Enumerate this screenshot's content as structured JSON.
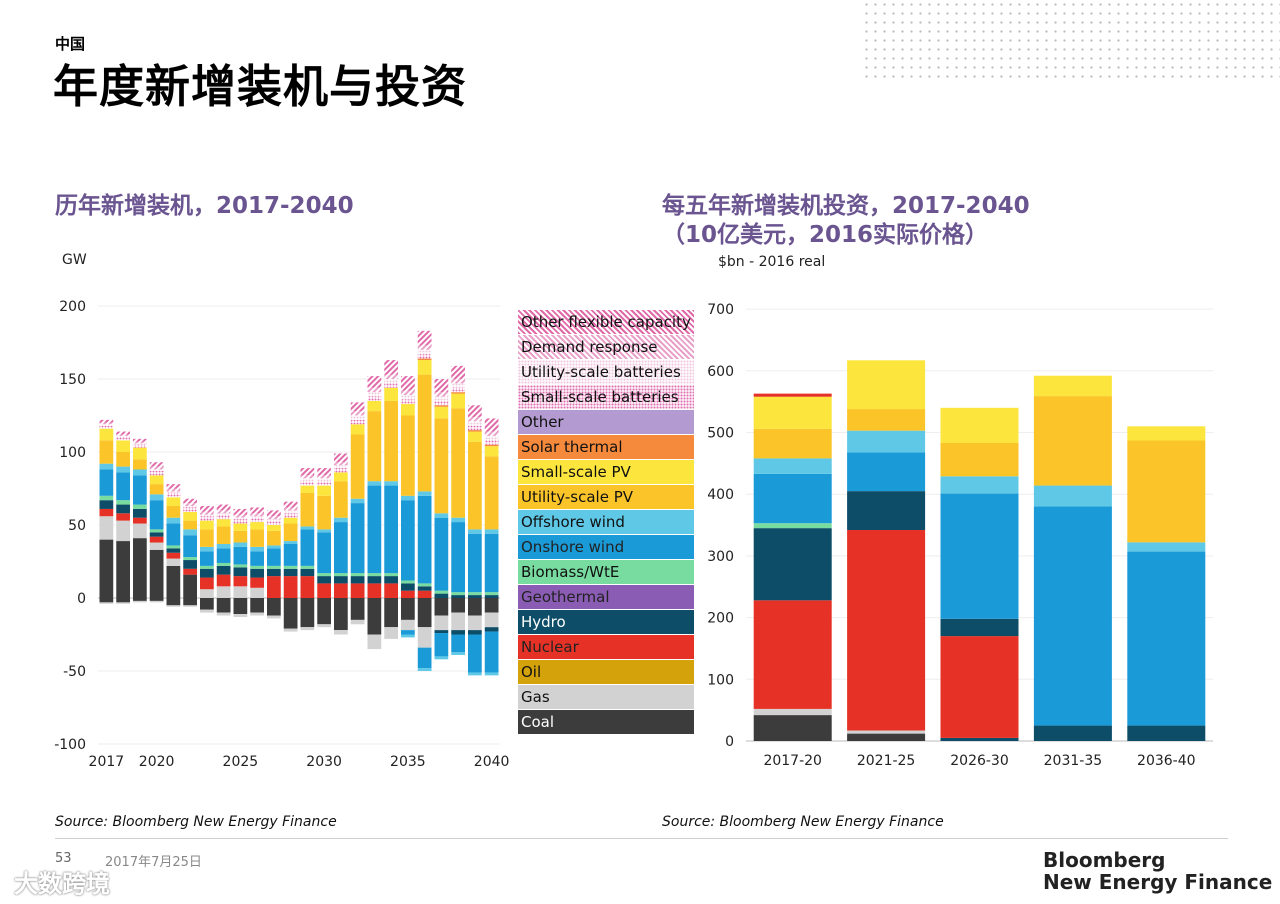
{
  "header": {
    "kicker": "中国",
    "title": "年度新增装机与投资"
  },
  "left_panel": {
    "subtitle": "历年新增装机，2017-2040",
    "unit": "GW",
    "source": "Source: Bloomberg New Energy Finance"
  },
  "right_panel": {
    "subtitle_line1": "每五年新增装机投资，2017-2040",
    "subtitle_line2": "（10亿美元，2016实际价格）",
    "unit": "$bn - 2016 real",
    "source": "Source: Bloomberg New Energy Finance"
  },
  "footer": {
    "page": "53",
    "date": "2017年7月25日",
    "brand_line1": "Bloomberg",
    "brand_line2": "New Energy Finance",
    "watermark": "大数跨境"
  },
  "legend": [
    {
      "label": "Other flexible capacity",
      "color": "#e06aa8",
      "pattern": "hatch"
    },
    {
      "label": "Demand response",
      "color": "#e8a0c8",
      "pattern": "hatch"
    },
    {
      "label": "Utility-scale batteries",
      "color": "#f0c8dc",
      "pattern": "dots"
    },
    {
      "label": "Small-scale batteries",
      "color": "#e070b0",
      "pattern": "dots"
    },
    {
      "label": "Other",
      "color": "#b39ad0",
      "pattern": "solid"
    },
    {
      "label": "Solar thermal",
      "color": "#f58a3c",
      "pattern": "solid"
    },
    {
      "label": "Small-scale PV",
      "color": "#fce53c",
      "pattern": "solid"
    },
    {
      "label": "Utility-scale PV",
      "color": "#fbc52a",
      "pattern": "solid"
    },
    {
      "label": "Offshore wind",
      "color": "#5ec8e6",
      "pattern": "solid"
    },
    {
      "label": "Onshore wind",
      "color": "#1b9ad8",
      "pattern": "solid"
    },
    {
      "label": "Biomass/WtE",
      "color": "#78dca0",
      "pattern": "solid"
    },
    {
      "label": "Geothermal",
      "color": "#8a5cb4",
      "pattern": "solid"
    },
    {
      "label": "Hydro",
      "color": "#0d4d68",
      "pattern": "solid"
    },
    {
      "label": "Nuclear",
      "color": "#e63226",
      "pattern": "solid"
    },
    {
      "label": "Oil",
      "color": "#d4a20a",
      "pattern": "solid"
    },
    {
      "label": "Gas",
      "color": "#d2d2d2",
      "pattern": "solid"
    },
    {
      "label": "Coal",
      "color": "#3c3c3c",
      "pattern": "solid"
    }
  ],
  "chart_data": [
    {
      "type": "bar",
      "stacked": true,
      "ylabel": "GW",
      "ylim": [
        -100,
        200
      ],
      "yticks": [
        200,
        150,
        100,
        50,
        0,
        -50,
        -100
      ],
      "x": [
        2017,
        2018,
        2019,
        2020,
        2021,
        2022,
        2023,
        2024,
        2025,
        2026,
        2027,
        2028,
        2029,
        2030,
        2031,
        2032,
        2033,
        2034,
        2035,
        2036,
        2037,
        2038,
        2039,
        2040
      ],
      "xtick_labels": [
        "2017",
        "2020",
        "2025",
        "2030",
        "2035",
        "2040"
      ],
      "series_order": [
        "Coal",
        "Gas",
        "Oil",
        "Nuclear",
        "Hydro",
        "Geothermal",
        "Biomass/WtE",
        "Onshore wind",
        "Offshore wind",
        "Utility-scale PV",
        "Small-scale PV",
        "Solar thermal",
        "Other",
        "Small-scale batteries",
        "Utility-scale batteries",
        "Demand response",
        "Other flexible capacity"
      ],
      "series": [
        {
          "name": "Coal",
          "values": [
            40,
            39,
            41,
            33,
            22,
            16,
            0,
            0,
            0,
            0,
            0,
            0,
            0,
            0,
            0,
            0,
            0,
            0,
            0,
            0,
            0,
            0,
            0,
            0
          ]
        },
        {
          "name": "Gas",
          "values": [
            16,
            14,
            10,
            5,
            5,
            0,
            6,
            8,
            8,
            7,
            0,
            0,
            0,
            0,
            0,
            0,
            0,
            0,
            0,
            0,
            0,
            0,
            0,
            0
          ]
        },
        {
          "name": "Nuclear",
          "values": [
            5,
            5,
            4,
            4,
            4,
            4,
            8,
            8,
            7,
            7,
            15,
            15,
            15,
            10,
            10,
            10,
            10,
            10,
            5,
            5,
            0,
            0,
            0,
            0
          ]
        },
        {
          "name": "Hydro",
          "values": [
            6,
            6,
            6,
            3,
            3,
            6,
            6,
            6,
            6,
            6,
            5,
            5,
            5,
            5,
            5,
            5,
            5,
            5,
            5,
            3,
            3,
            2,
            2,
            2
          ]
        },
        {
          "name": "Biomass/WtE",
          "values": [
            3,
            3,
            3,
            2,
            2,
            2,
            2,
            2,
            2,
            2,
            2,
            2,
            2,
            2,
            2,
            2,
            2,
            2,
            2,
            2,
            2,
            2,
            2,
            2
          ]
        },
        {
          "name": "Onshore wind",
          "values": [
            18,
            19,
            20,
            20,
            15,
            15,
            10,
            10,
            12,
            10,
            12,
            15,
            25,
            28,
            35,
            48,
            60,
            60,
            55,
            60,
            50,
            48,
            40,
            40
          ]
        },
        {
          "name": "Offshore wind",
          "values": [
            4,
            4,
            4,
            4,
            4,
            4,
            3,
            3,
            3,
            3,
            2,
            2,
            2,
            2,
            3,
            3,
            3,
            3,
            3,
            3,
            3,
            3,
            3,
            3
          ]
        },
        {
          "name": "Utility-scale PV",
          "values": [
            16,
            10,
            7,
            7,
            8,
            6,
            12,
            12,
            8,
            12,
            10,
            12,
            23,
            23,
            25,
            44,
            48,
            55,
            55,
            80,
            65,
            75,
            60,
            50
          ]
        },
        {
          "name": "Small-scale PV",
          "values": [
            8,
            8,
            8,
            6,
            6,
            6,
            6,
            5,
            5,
            5,
            4,
            4,
            5,
            7,
            6,
            7,
            7,
            9,
            8,
            10,
            8,
            10,
            7,
            7
          ]
        },
        {
          "name": "Solar thermal",
          "values": [
            0,
            0,
            0,
            0,
            0,
            0,
            0,
            0,
            0,
            0,
            0,
            0,
            0,
            0,
            0,
            0,
            0,
            0,
            0,
            1,
            1,
            1,
            1,
            1
          ]
        },
        {
          "name": "Small-scale batteries",
          "values": [
            2,
            2,
            2,
            3,
            3,
            3,
            3,
            3,
            3,
            3,
            3,
            3,
            3,
            3,
            3,
            3,
            3,
            3,
            3,
            3,
            3,
            3,
            3,
            3
          ]
        },
        {
          "name": "Utility-scale batteries",
          "values": [
            1,
            1,
            1,
            1,
            1,
            1,
            1,
            1,
            1,
            1,
            1,
            2,
            2,
            2,
            2,
            3,
            3,
            3,
            3,
            3,
            3,
            3,
            3,
            3
          ]
        },
        {
          "name": "Demand response",
          "values": [
            1,
            1,
            1,
            2,
            2,
            2,
            2,
            2,
            2,
            2,
            2,
            2,
            2,
            2,
            2,
            3,
            3,
            3,
            3,
            3,
            3,
            3,
            3,
            3
          ]
        },
        {
          "name": "Other flexible capacity",
          "values": [
            2,
            2,
            2,
            3,
            3,
            3,
            4,
            4,
            4,
            4,
            4,
            4,
            5,
            5,
            6,
            6,
            8,
            10,
            10,
            10,
            9,
            9,
            8,
            9
          ]
        }
      ],
      "negative_series": [
        {
          "name": "Coal",
          "values": [
            -3,
            -3,
            -2,
            -2,
            -5,
            -5,
            -8,
            -10,
            -11,
            -10,
            -12,
            -21,
            -20,
            -18,
            -22,
            -15,
            -25,
            -20,
            -15,
            -20,
            -12,
            -10,
            -12,
            -10
          ]
        },
        {
          "name": "Gas",
          "values": [
            -1,
            -1,
            -1,
            -1,
            -1,
            -1,
            -2,
            -2,
            -2,
            -2,
            -2,
            -2,
            -2,
            -2,
            -3,
            -3,
            -10,
            -8,
            -7,
            -14,
            -10,
            -12,
            -10,
            -10
          ]
        },
        {
          "name": "Hydro",
          "values": [
            0,
            0,
            0,
            0,
            0,
            0,
            0,
            0,
            0,
            0,
            0,
            0,
            0,
            0,
            0,
            0,
            0,
            0,
            0,
            0,
            -2,
            -3,
            -3,
            -3
          ]
        },
        {
          "name": "Onshore wind",
          "values": [
            0,
            0,
            0,
            0,
            0,
            0,
            0,
            0,
            0,
            0,
            0,
            0,
            0,
            0,
            0,
            0,
            0,
            0,
            -3,
            -14,
            -16,
            -12,
            -26,
            -28
          ]
        },
        {
          "name": "Offshore wind",
          "values": [
            0,
            0,
            0,
            0,
            0,
            0,
            0,
            0,
            0,
            0,
            0,
            0,
            0,
            0,
            0,
            0,
            0,
            0,
            -2,
            -2,
            -2,
            -2,
            -2,
            -2
          ]
        }
      ]
    },
    {
      "type": "bar",
      "stacked": true,
      "ylabel": "$bn - 2016 real",
      "ylim": [
        0,
        700
      ],
      "yticks": [
        700,
        600,
        500,
        400,
        300,
        200,
        100,
        0
      ],
      "categories": [
        "2017-20",
        "2021-25",
        "2026-30",
        "2031-35",
        "2036-40"
      ],
      "series_order": [
        "Hydro",
        "Coal",
        "Gas",
        "Nuclear",
        "Hydro",
        "Biomass/WtE",
        "Onshore wind",
        "Offshore wind",
        "Utility-scale PV",
        "Small-scale PV",
        "Nuclear"
      ],
      "stacks": [
        [
          [
            "Coal",
            42
          ],
          [
            "Gas",
            10
          ],
          [
            "Nuclear",
            176
          ],
          [
            "Hydro",
            117
          ],
          [
            "Biomass/WtE",
            8
          ],
          [
            "Onshore wind",
            80
          ],
          [
            "Offshore wind",
            25
          ],
          [
            "Utility-scale PV",
            48
          ],
          [
            "Small-scale PV",
            52
          ],
          [
            "Nuclear",
            5
          ]
        ],
        [
          [
            "Coal",
            12
          ],
          [
            "Gas",
            5
          ],
          [
            "Nuclear",
            325
          ],
          [
            "Hydro",
            63
          ],
          [
            "Onshore wind",
            63
          ],
          [
            "Offshore wind",
            35
          ],
          [
            "Utility-scale PV",
            35
          ],
          [
            "Small-scale PV",
            79
          ]
        ],
        [
          [
            "Hydro",
            5
          ],
          [
            "Nuclear",
            165
          ],
          [
            "Hydro",
            28
          ],
          [
            "Onshore wind",
            203
          ],
          [
            "Offshore wind",
            28
          ],
          [
            "Utility-scale PV",
            54
          ],
          [
            "Small-scale PV",
            57
          ]
        ],
        [
          [
            "Hydro",
            25
          ],
          [
            "Onshore wind",
            355
          ],
          [
            "Offshore wind",
            34
          ],
          [
            "Utility-scale PV",
            145
          ],
          [
            "Small-scale PV",
            33
          ]
        ],
        [
          [
            "Hydro",
            25
          ],
          [
            "Onshore wind",
            282
          ],
          [
            "Offshore wind",
            15
          ],
          [
            "Utility-scale PV",
            165
          ],
          [
            "Small-scale PV",
            23
          ]
        ]
      ]
    }
  ]
}
